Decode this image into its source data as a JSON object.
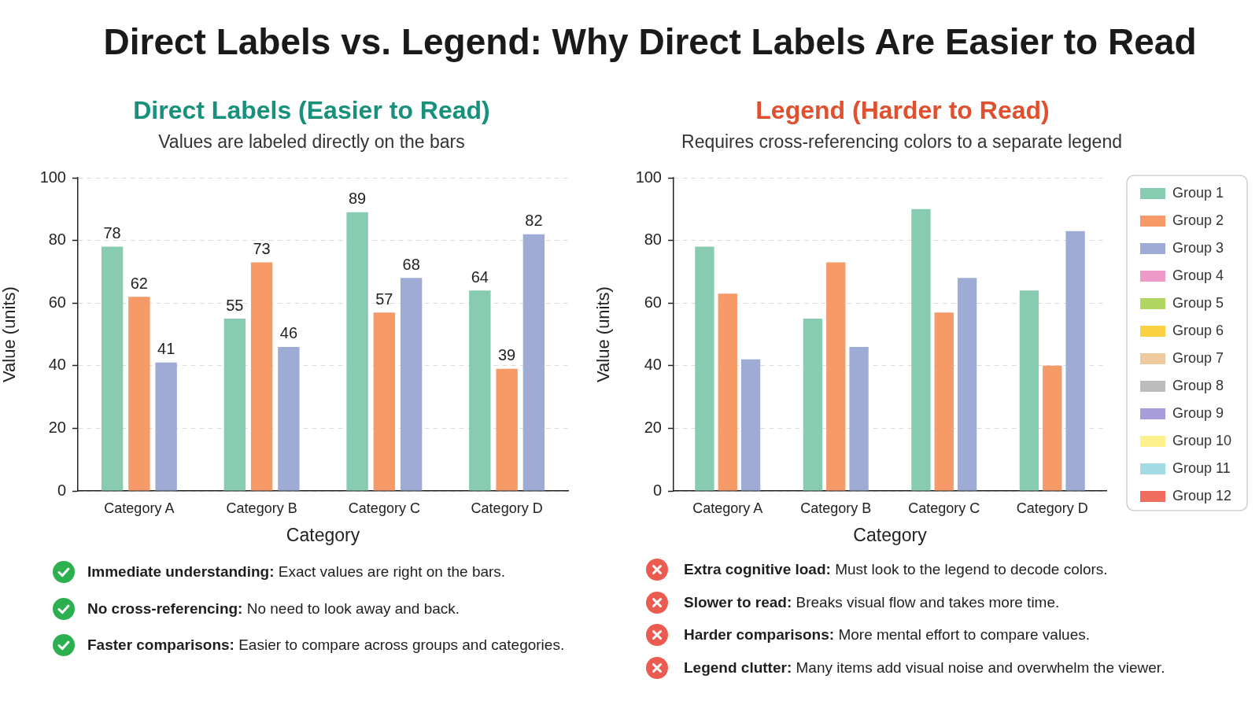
{
  "chart_data": [
    {
      "type": "other",
      "title": "Direct Labels vs. Legend: Why Direct Labels Are Easier to Read"
    },
    {
      "type": "bar",
      "title": "Direct Labels (Easier to Read)",
      "subtitle": "Values are labeled directly on the bars",
      "xlabel": "Category",
      "ylabel": "Value (units)",
      "categories": [
        "Category A",
        "Category B",
        "Category C",
        "Category D"
      ],
      "series": [
        {
          "color": "#87ccb1",
          "values": [
            78,
            55,
            89,
            64
          ]
        },
        {
          "color": "#f69a68",
          "values": [
            62,
            73,
            57,
            39
          ]
        },
        {
          "color": "#9eabd4",
          "values": [
            41,
            46,
            68,
            82
          ]
        }
      ],
      "ylim": [
        0,
        100
      ],
      "yticks": [
        0,
        20,
        40,
        60,
        80,
        100
      ],
      "grid": "y",
      "legend": false,
      "data_labels": true,
      "annotations": [
        "Immediate understanding: Exact values are right on the bars.",
        "No cross-referencing: No need to look away and back.",
        "Faster comparisons: Easier to compare across groups and categories."
      ]
    },
    {
      "type": "bar",
      "title": "Legend (Harder to Read)",
      "subtitle": "Requires cross-referencing colors to a separate legend",
      "xlabel": "Category",
      "ylabel": "Value (units)",
      "categories": [
        "Category A",
        "Category B",
        "Category C",
        "Category D"
      ],
      "series": [
        {
          "name": "Group 1",
          "color": "#87ccb1",
          "values": [
            78,
            55,
            90,
            64
          ]
        },
        {
          "name": "Group 2",
          "color": "#f69a68",
          "values": [
            63,
            73,
            57,
            40
          ]
        },
        {
          "name": "Group 3",
          "color": "#9eabd4",
          "values": [
            42,
            46,
            68,
            83
          ]
        },
        {
          "name": "Group 4",
          "color": "#ee9ac8",
          "values": [
            null,
            null,
            null,
            null
          ]
        },
        {
          "name": "Group 5",
          "color": "#b1d661",
          "values": [
            null,
            null,
            null,
            null
          ]
        },
        {
          "name": "Group 6",
          "color": "#f9d142",
          "values": [
            null,
            null,
            null,
            null
          ]
        },
        {
          "name": "Group 7",
          "color": "#ecc99e",
          "values": [
            null,
            null,
            null,
            null
          ]
        },
        {
          "name": "Group 8",
          "color": "#bcbcbc",
          "values": [
            null,
            null,
            null,
            null
          ]
        },
        {
          "name": "Group 9",
          "color": "#a89ddb",
          "values": [
            null,
            null,
            null,
            null
          ]
        },
        {
          "name": "Group 10",
          "color": "#fdf18c",
          "values": [
            null,
            null,
            null,
            null
          ]
        },
        {
          "name": "Group 11",
          "color": "#a2dce2",
          "values": [
            null,
            null,
            null,
            null
          ]
        },
        {
          "name": "Group 12",
          "color": "#ef6d5e",
          "values": [
            null,
            null,
            null,
            null
          ]
        }
      ],
      "ylim": [
        0,
        100
      ],
      "yticks": [
        0,
        20,
        40,
        60,
        80,
        100
      ],
      "grid": "y",
      "legend": "right",
      "annotations": [
        "Extra cognitive load: Must look to the legend to decode colors.",
        "Slower to read: Breaks visual flow and takes more time.",
        "Harder comparisons: More mental effort to compare values.",
        "Legend clutter: Many items add visual noise and overwhelm the viewer."
      ]
    }
  ]
}
